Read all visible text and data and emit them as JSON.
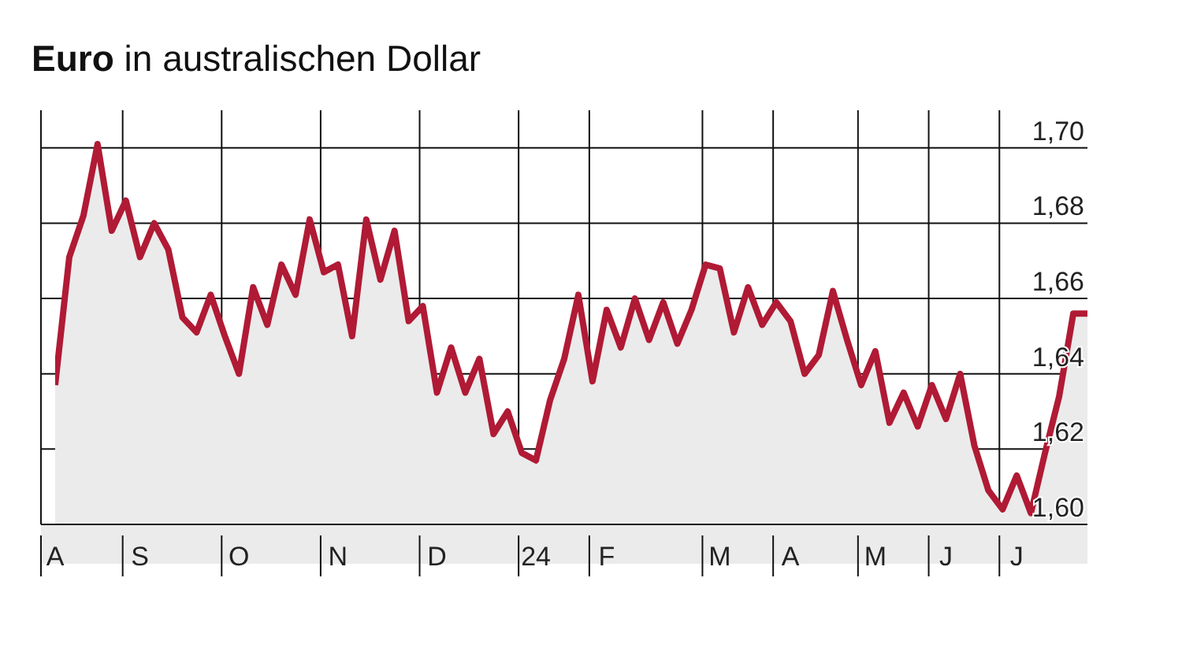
{
  "chart_data": {
    "type": "area",
    "title": "Euro in australischen Dollar",
    "categories": [
      "A",
      null,
      null,
      null,
      null,
      null,
      "S",
      null,
      null,
      null,
      null,
      null,
      null,
      "O",
      null,
      null,
      null,
      null,
      null,
      null,
      "N",
      null,
      null,
      null,
      null,
      null,
      null,
      "D",
      null,
      null,
      null,
      null,
      null,
      null,
      "24",
      null,
      null,
      null,
      null,
      "F",
      null,
      null,
      null,
      null,
      null,
      null,
      null,
      "M",
      null,
      null,
      null,
      null,
      "A",
      null,
      null,
      null,
      null,
      null,
      "M",
      null,
      null,
      null,
      null,
      "J",
      null,
      null,
      null,
      null,
      "J",
      null,
      null,
      null,
      null,
      null
    ],
    "series": [
      {
        "color": "#b01a35",
        "values": [
          1.637,
          1.671,
          1.682,
          1.701,
          1.678,
          1.686,
          1.671,
          1.68,
          1.673,
          1.655,
          1.651,
          1.661,
          1.65,
          1.64,
          1.663,
          1.653,
          1.669,
          1.661,
          1.681,
          1.667,
          1.669,
          1.65,
          1.681,
          1.665,
          1.678,
          1.654,
          1.658,
          1.635,
          1.647,
          1.635,
          1.644,
          1.624,
          1.63,
          1.619,
          1.617,
          1.633,
          1.644,
          1.661,
          1.638,
          1.657,
          1.647,
          1.66,
          1.649,
          1.659,
          1.648,
          1.657,
          1.669,
          1.668,
          1.651,
          1.663,
          1.653,
          1.659,
          1.654,
          1.64,
          1.645,
          1.662,
          1.649,
          1.637,
          1.646,
          1.627,
          1.635,
          1.626,
          1.637,
          1.628,
          1.64,
          1.621,
          1.609,
          1.604,
          1.613,
          1.603,
          1.619,
          1.634,
          1.656,
          1.656
        ]
      }
    ],
    "ylim": [
      1.6,
      1.71
    ],
    "yticks": [
      {
        "value": 1.6,
        "label": "1,60"
      },
      {
        "value": 1.62,
        "label": "1,62"
      },
      {
        "value": 1.64,
        "label": "1,64"
      },
      {
        "value": 1.66,
        "label": "1,66"
      },
      {
        "value": 1.68,
        "label": "1,68"
      },
      {
        "value": 1.7,
        "label": "1,70"
      }
    ],
    "grid": true,
    "legend": false
  }
}
